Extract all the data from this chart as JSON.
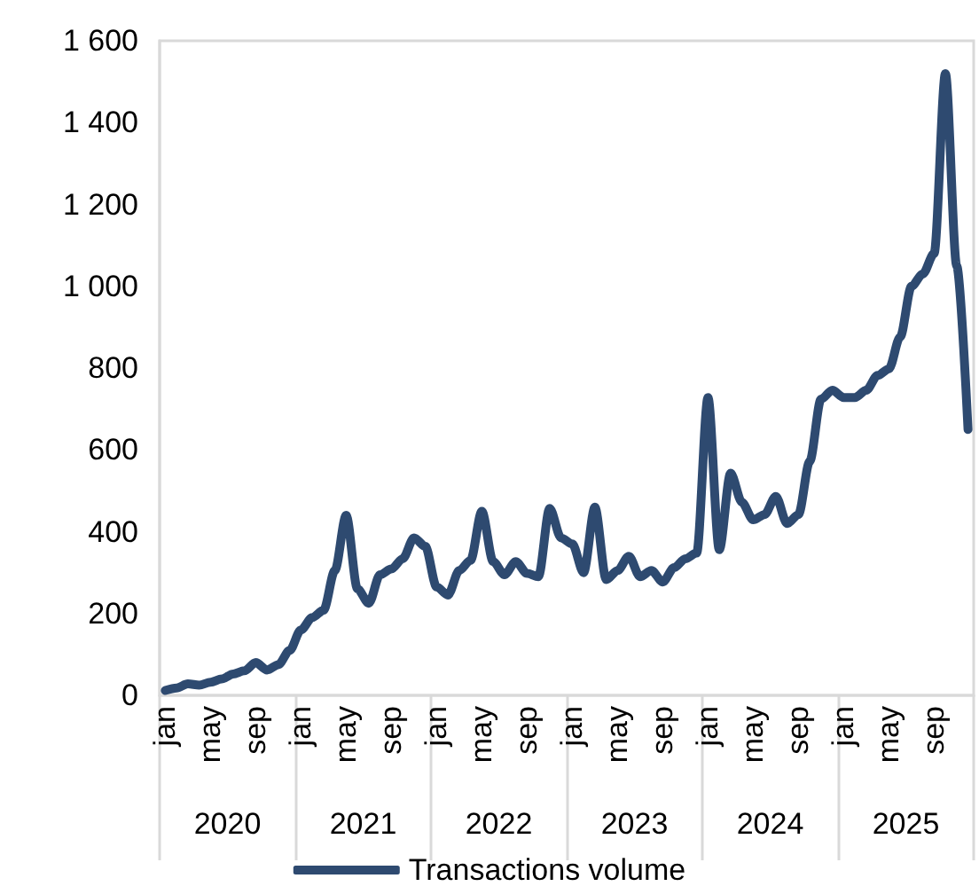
{
  "chart_data": {
    "type": "line",
    "categories": [
      "jan",
      null,
      null,
      null,
      "may",
      null,
      null,
      null,
      "sep",
      null,
      null,
      null,
      "jan",
      null,
      null,
      null,
      "may",
      null,
      null,
      null,
      "sep",
      null,
      null,
      null,
      "jan",
      null,
      null,
      null,
      "may",
      null,
      null,
      null,
      "sep",
      null,
      null,
      null,
      "jan",
      null,
      null,
      null,
      "may",
      null,
      null,
      null,
      "sep",
      null,
      null,
      null,
      "jan",
      null,
      null,
      null,
      "may",
      null,
      null,
      null,
      "sep",
      null,
      null,
      null,
      "jan",
      null,
      null,
      null,
      "may",
      null,
      null,
      null,
      "sep",
      null,
      null,
      null
    ],
    "series": [
      {
        "name": "Transactions volume",
        "color": "#2e4a70",
        "values": [
          12,
          18,
          28,
          25,
          32,
          40,
          52,
          60,
          80,
          62,
          75,
          110,
          160,
          190,
          208,
          305,
          440,
          260,
          225,
          295,
          309,
          334,
          385,
          364,
          265,
          245,
          305,
          330,
          450,
          327,
          295,
          327,
          298,
          290,
          457,
          385,
          370,
          300,
          460,
          283,
          305,
          340,
          290,
          305,
          277,
          312,
          334,
          348,
          728,
          356,
          543,
          472,
          429,
          442,
          486,
          420,
          442,
          572,
          724,
          746,
          728,
          728,
          746,
          782,
          798,
          876,
          1000,
          1030,
          1080,
          1520,
          1050,
          650
        ]
      }
    ],
    "ylim": [
      0,
      1600
    ],
    "yticks": [
      0,
      200,
      400,
      600,
      800,
      {
        "value": 1000,
        "label": "1 000"
      },
      {
        "value": 1200,
        "label": "1 200"
      },
      {
        "value": 1400,
        "label": "1 400"
      },
      {
        "value": 1600,
        "label": "1 600"
      }
    ],
    "annotations": [
      "2020",
      "2021",
      "2022",
      "2023",
      "2024",
      "2025"
    ],
    "legend": "bottom"
  }
}
